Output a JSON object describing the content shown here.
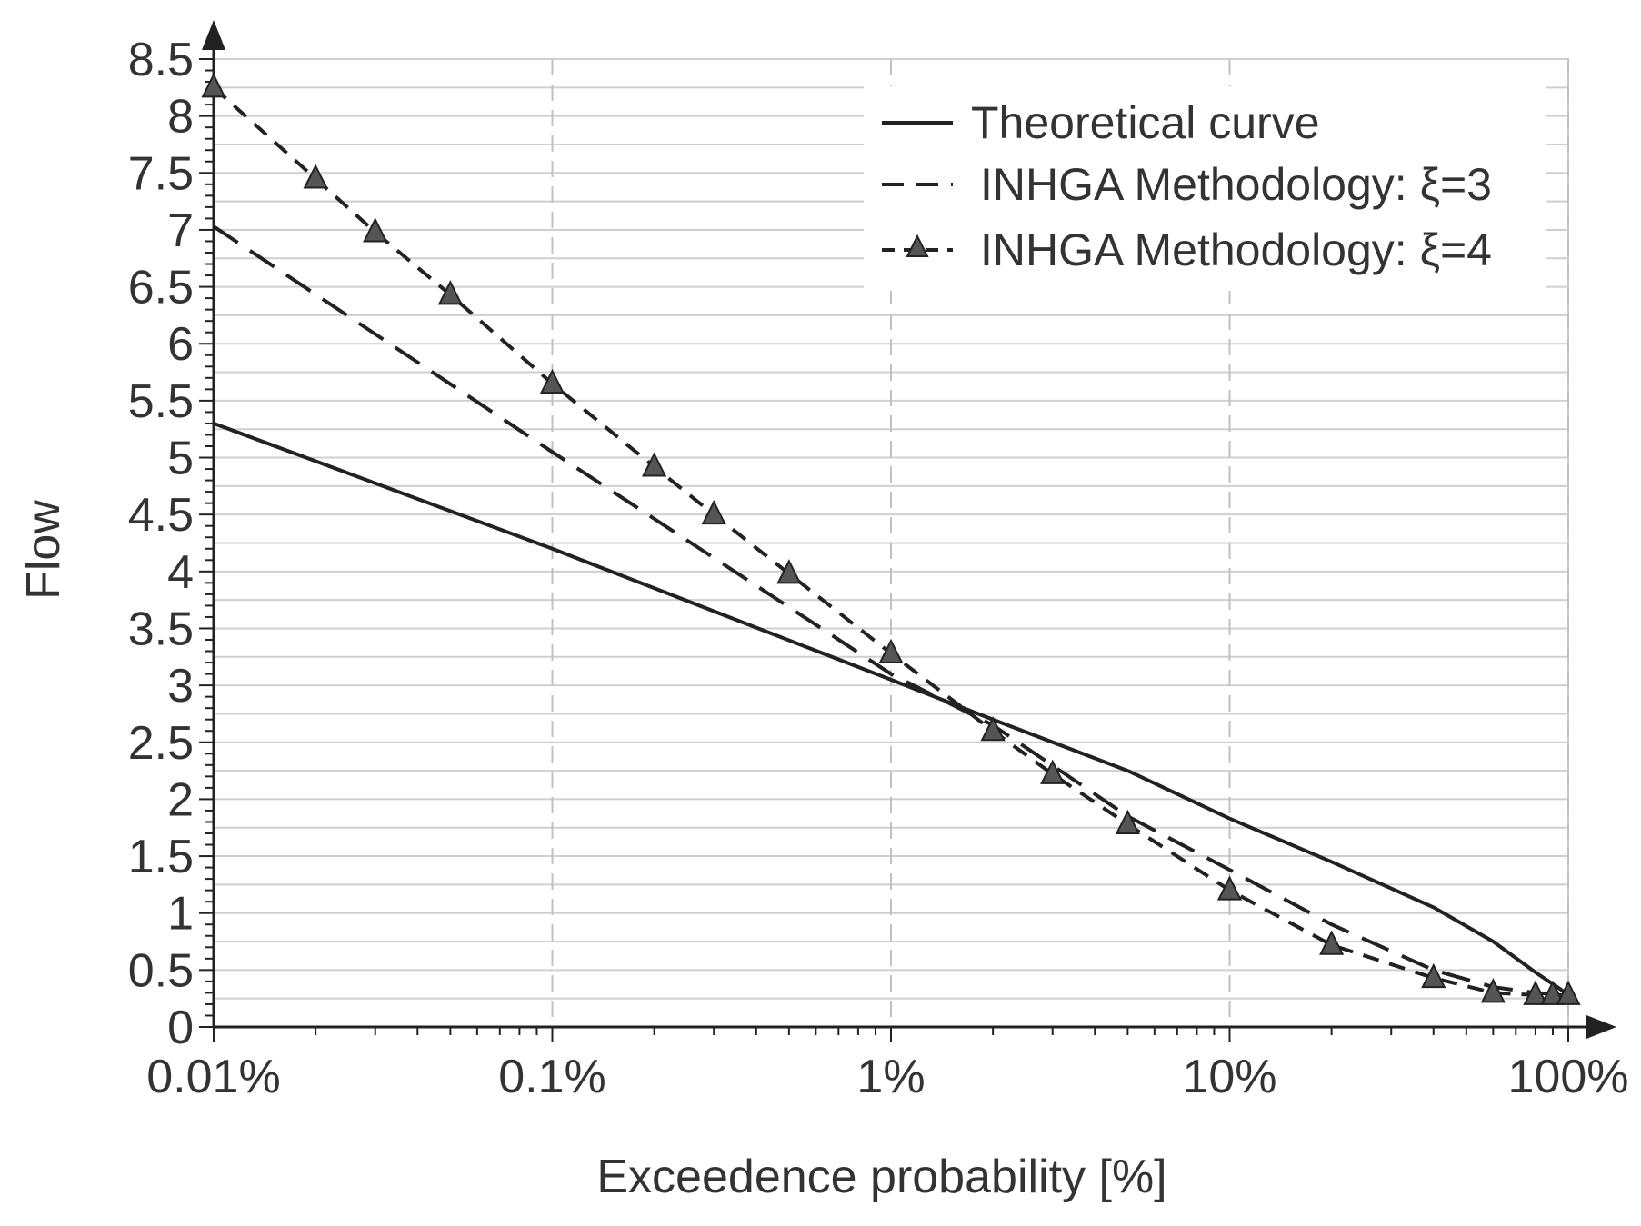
{
  "chart_data": {
    "type": "line",
    "title": "",
    "xlabel": "Exceedence probability [%]",
    "ylabel": "Flow",
    "xscale": "log",
    "xlim": [
      0.01,
      100
    ],
    "ylim": [
      0,
      8.5
    ],
    "x_ticks": [
      {
        "value": 0.01,
        "label": "0.01%"
      },
      {
        "value": 0.1,
        "label": "0.1%"
      },
      {
        "value": 1,
        "label": "1%"
      },
      {
        "value": 10,
        "label": "10%"
      },
      {
        "value": 100,
        "label": "100%"
      }
    ],
    "y_ticks": [
      {
        "value": 0,
        "label": "0"
      },
      {
        "value": 0.5,
        "label": "0.5"
      },
      {
        "value": 1,
        "label": "1"
      },
      {
        "value": 1.5,
        "label": "1.5"
      },
      {
        "value": 2,
        "label": "2"
      },
      {
        "value": 2.5,
        "label": "2.5"
      },
      {
        "value": 3,
        "label": "3"
      },
      {
        "value": 3.5,
        "label": "3.5"
      },
      {
        "value": 4,
        "label": "4"
      },
      {
        "value": 4.5,
        "label": "4.5"
      },
      {
        "value": 5,
        "label": "5"
      },
      {
        "value": 5.5,
        "label": "5.5"
      },
      {
        "value": 6,
        "label": "6"
      },
      {
        "value": 6.5,
        "label": "6.5"
      },
      {
        "value": 7,
        "label": "7"
      },
      {
        "value": 7.5,
        "label": "7.5"
      },
      {
        "value": 8,
        "label": "8"
      },
      {
        "value": 8.5,
        "label": "8.5"
      }
    ],
    "grid": true,
    "legend_position": "top-right",
    "series": [
      {
        "name": "Theoretical curve",
        "style": "solid",
        "marker": "none",
        "points": [
          [
            0.01,
            5.3
          ],
          [
            0.1,
            4.2
          ],
          [
            1,
            3.05
          ],
          [
            2,
            2.7
          ],
          [
            5,
            2.25
          ],
          [
            10,
            1.83
          ],
          [
            20,
            1.45
          ],
          [
            40,
            1.05
          ],
          [
            60,
            0.75
          ],
          [
            80,
            0.48
          ],
          [
            95,
            0.33
          ],
          [
            100,
            0.28
          ]
        ]
      },
      {
        "name": "INHGA Methodology: ξ=3",
        "style": "dashed",
        "marker": "none",
        "points": [
          [
            0.01,
            7.03
          ],
          [
            0.1,
            5.05
          ],
          [
            1,
            3.1
          ],
          [
            2,
            2.65
          ],
          [
            5,
            1.85
          ],
          [
            10,
            1.38
          ],
          [
            20,
            0.9
          ],
          [
            40,
            0.5
          ],
          [
            60,
            0.35
          ],
          [
            80,
            0.3
          ],
          [
            100,
            0.28
          ]
        ]
      },
      {
        "name": "INHGA Methodology: ξ=4",
        "style": "dashed",
        "marker": "triangle",
        "points": [
          [
            0.01,
            8.25
          ],
          [
            0.02,
            7.45
          ],
          [
            0.03,
            6.98
          ],
          [
            0.05,
            6.43
          ],
          [
            0.1,
            5.65
          ],
          [
            0.2,
            4.92
          ],
          [
            0.3,
            4.5
          ],
          [
            0.5,
            3.98
          ],
          [
            1,
            3.28
          ],
          [
            2,
            2.6
          ],
          [
            3,
            2.22
          ],
          [
            5,
            1.78
          ],
          [
            10,
            1.2
          ],
          [
            20,
            0.72
          ],
          [
            40,
            0.43
          ],
          [
            60,
            0.3
          ],
          [
            80,
            0.28
          ],
          [
            90,
            0.28
          ],
          [
            100,
            0.28
          ]
        ]
      }
    ]
  }
}
